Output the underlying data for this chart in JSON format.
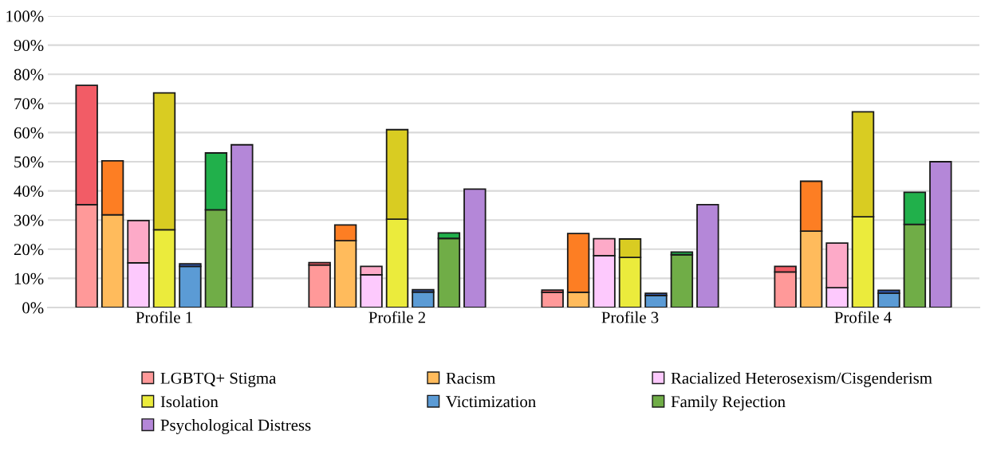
{
  "chart_data": {
    "type": "bar",
    "stacked": true,
    "categories": [
      null,
      null,
      null,
      null,
      "Profile 1",
      null,
      null,
      null,
      null,
      null,
      null,
      null,
      null,
      "Profile 2",
      null,
      null,
      null,
      null,
      null,
      null,
      null,
      null,
      "Profile 3",
      null,
      null,
      null,
      null,
      null,
      null,
      null,
      null,
      "Profile 4",
      null,
      null,
      null,
      null
    ],
    "series": [
      {
        "name": "LGBTQ+ Stigma",
        "color": "#ff9999",
        "values": [
          null,
          35.3,
          null,
          null,
          null,
          null,
          null,
          null,
          null,
          null,
          14.6,
          null,
          null,
          null,
          null,
          null,
          null,
          null,
          null,
          5.2,
          null,
          null,
          null,
          null,
          null,
          null,
          null,
          null,
          12.2,
          null,
          null,
          null,
          null,
          null,
          null,
          null
        ]
      },
      {
        "color": "#f25c66",
        "values": [
          null,
          40.9,
          null,
          null,
          null,
          null,
          null,
          null,
          null,
          null,
          0.8,
          null,
          null,
          null,
          null,
          null,
          null,
          null,
          null,
          0.8,
          null,
          null,
          null,
          null,
          null,
          null,
          null,
          null,
          1.9,
          null,
          null,
          null,
          null,
          null,
          null,
          null
        ]
      },
      {
        "name": "Racism",
        "color": "#ffbb5c",
        "values": [
          null,
          null,
          31.8,
          null,
          null,
          null,
          null,
          null,
          null,
          null,
          null,
          22.9,
          null,
          null,
          null,
          null,
          null,
          null,
          null,
          null,
          5.2,
          null,
          null,
          null,
          null,
          null,
          null,
          null,
          null,
          26.2,
          null,
          null,
          null,
          null,
          null,
          null
        ]
      },
      {
        "color": "#fd7e23",
        "values": [
          null,
          null,
          18.5,
          null,
          null,
          null,
          null,
          null,
          null,
          null,
          null,
          5.4,
          null,
          null,
          null,
          null,
          null,
          null,
          null,
          null,
          20.2,
          null,
          null,
          null,
          null,
          null,
          null,
          null,
          null,
          17.1,
          null,
          null,
          null,
          null,
          null,
          null
        ]
      },
      {
        "name": "Racialized Heterosexism/Cisgenderism",
        "color": "#fdc9fd",
        "values": [
          null,
          null,
          null,
          15.3,
          null,
          null,
          null,
          null,
          null,
          null,
          null,
          null,
          11.2,
          null,
          null,
          null,
          null,
          null,
          null,
          null,
          null,
          17.8,
          null,
          null,
          null,
          null,
          null,
          null,
          null,
          null,
          6.8,
          null,
          null,
          null,
          null,
          null
        ]
      },
      {
        "color": "#fdaac8",
        "values": [
          null,
          null,
          null,
          14.5,
          null,
          null,
          null,
          null,
          null,
          null,
          null,
          null,
          2.9,
          null,
          null,
          null,
          null,
          null,
          null,
          null,
          null,
          5.8,
          null,
          null,
          null,
          null,
          null,
          null,
          null,
          null,
          15.3,
          null,
          null,
          null,
          null,
          null
        ]
      },
      {
        "name": "Isolation",
        "color": "#ebeb3c",
        "values": [
          null,
          null,
          null,
          null,
          26.7,
          null,
          null,
          null,
          null,
          null,
          null,
          null,
          null,
          30.3,
          null,
          null,
          null,
          null,
          null,
          null,
          null,
          null,
          17.2,
          null,
          null,
          null,
          null,
          null,
          null,
          null,
          null,
          31.1,
          null,
          null,
          null,
          null
        ]
      },
      {
        "color": "#d9cc22",
        "values": [
          null,
          null,
          null,
          null,
          46.9,
          null,
          null,
          null,
          null,
          null,
          null,
          null,
          null,
          30.7,
          null,
          null,
          null,
          null,
          null,
          null,
          null,
          null,
          6.3,
          null,
          null,
          null,
          null,
          null,
          null,
          null,
          null,
          36.0,
          null,
          null,
          null,
          null
        ]
      },
      {
        "name": "Victimization",
        "color": "#5b9bd5",
        "values": [
          null,
          null,
          null,
          null,
          null,
          14.1,
          null,
          null,
          null,
          null,
          null,
          null,
          null,
          null,
          5.3,
          null,
          null,
          null,
          null,
          null,
          null,
          null,
          null,
          4.1,
          null,
          null,
          null,
          null,
          null,
          null,
          null,
          null,
          4.9,
          null,
          null,
          null
        ]
      },
      {
        "color": "#2f55a8",
        "values": [
          null,
          null,
          null,
          null,
          null,
          0.9,
          null,
          null,
          null,
          null,
          null,
          null,
          null,
          null,
          0.8,
          null,
          null,
          null,
          null,
          null,
          null,
          null,
          null,
          0.8,
          null,
          null,
          null,
          null,
          null,
          null,
          null,
          null,
          1.0,
          null,
          null,
          null
        ]
      },
      {
        "name": "Family Rejection",
        "color": "#70ad47",
        "values": [
          null,
          null,
          null,
          null,
          null,
          null,
          33.5,
          null,
          null,
          null,
          null,
          null,
          null,
          null,
          null,
          23.7,
          null,
          null,
          null,
          null,
          null,
          null,
          null,
          null,
          18.1,
          null,
          null,
          null,
          null,
          null,
          null,
          null,
          null,
          28.5,
          null,
          null
        ]
      },
      {
        "color": "#21b04b",
        "values": [
          null,
          null,
          null,
          null,
          null,
          null,
          19.5,
          null,
          null,
          null,
          null,
          null,
          null,
          null,
          null,
          1.9,
          null,
          null,
          null,
          null,
          null,
          null,
          null,
          null,
          0.9,
          null,
          null,
          null,
          null,
          null,
          null,
          null,
          null,
          11.0,
          null,
          null
        ]
      },
      {
        "name": "Psychological Distress",
        "color": "#b487d8",
        "values": [
          null,
          null,
          null,
          null,
          null,
          null,
          null,
          55.8,
          null,
          null,
          null,
          null,
          null,
          null,
          null,
          null,
          40.6,
          null,
          null,
          null,
          null,
          null,
          null,
          null,
          null,
          35.3,
          null,
          null,
          null,
          null,
          null,
          null,
          null,
          null,
          50.0,
          null
        ]
      }
    ],
    "ylim": [
      0,
      100
    ],
    "yticks": [
      {
        "value": 0,
        "label": "0%"
      },
      {
        "value": 10,
        "label": "10%"
      },
      {
        "value": 20,
        "label": "20%"
      },
      {
        "value": 30,
        "label": "30%"
      },
      {
        "value": 40,
        "label": "40%"
      },
      {
        "value": 50,
        "label": "50%"
      },
      {
        "value": 60,
        "label": "60%"
      },
      {
        "value": 70,
        "label": "70%"
      },
      {
        "value": 80,
        "label": "80%"
      },
      {
        "value": 90,
        "label": "90%"
      },
      {
        "value": 100,
        "label": "100%"
      }
    ],
    "grid": "y",
    "legend": "bottom"
  }
}
